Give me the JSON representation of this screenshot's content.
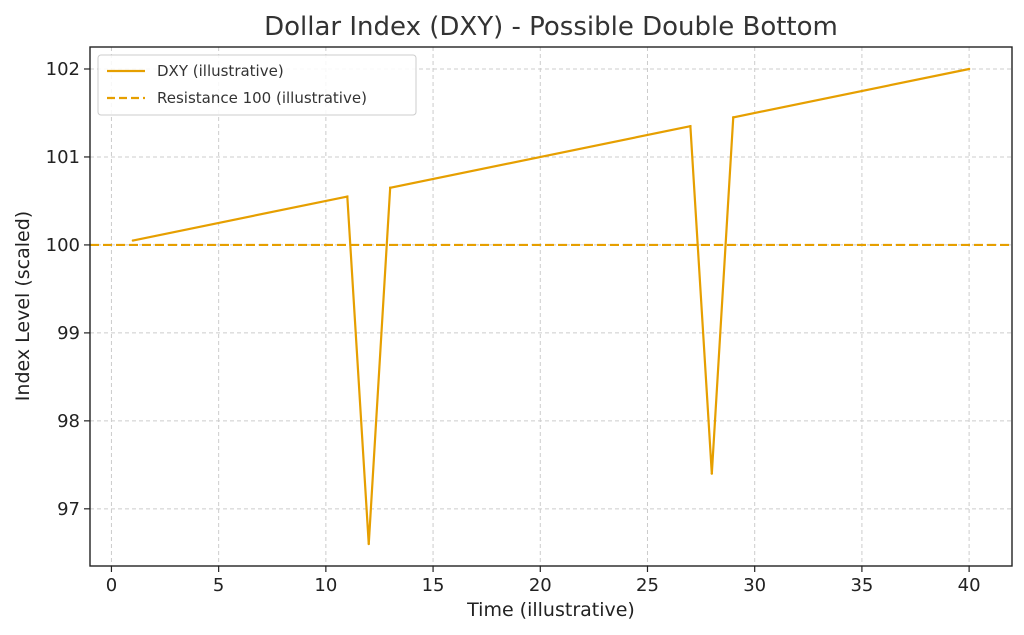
{
  "chart_data": {
    "type": "line",
    "title": "Dollar Index (DXY) - Possible Double Bottom",
    "xlabel": "Time (illustrative)",
    "ylabel": "Index Level (scaled)",
    "xlim": [
      -1,
      42
    ],
    "ylim": [
      96.35,
      102.25
    ],
    "xticks": [
      0,
      5,
      10,
      15,
      20,
      25,
      30,
      35,
      40
    ],
    "yticks": [
      97,
      98,
      99,
      100,
      101,
      102
    ],
    "grid": true,
    "legend_position": "top-left",
    "colors": {
      "series": "#e69f00"
    },
    "series": [
      {
        "name": "DXY (illustrative)",
        "style": "solid",
        "x": [
          1,
          11,
          12,
          13,
          27,
          28,
          29,
          40
        ],
        "y": [
          100.05,
          100.55,
          96.6,
          100.65,
          101.35,
          97.4,
          101.45,
          102.0
        ]
      },
      {
        "name": "Resistance 100 (illustrative)",
        "style": "dashed",
        "y": 100
      }
    ]
  }
}
